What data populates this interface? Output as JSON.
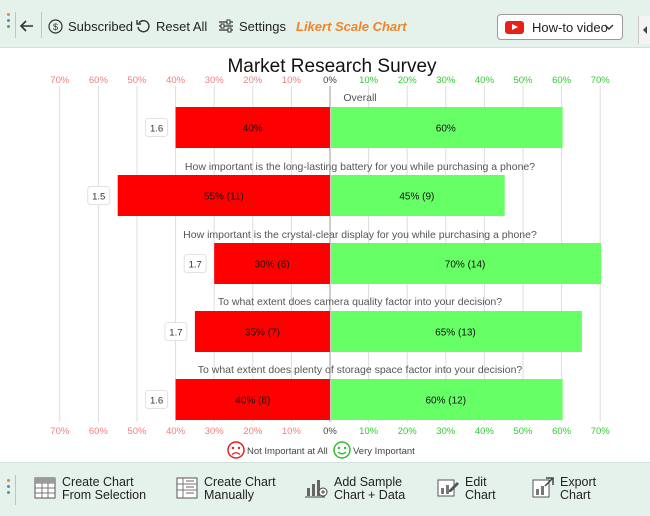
{
  "toolbar": {
    "subscribed_label": "Subscribed",
    "reset_label": "Reset All",
    "settings_label": "Settings",
    "chart_name": "Likert Scale Chart",
    "howto_label": "How-to video"
  },
  "bottom_toolbar": {
    "create_from_selection": [
      "Create Chart",
      "From Selection"
    ],
    "create_manually": [
      "Create Chart",
      "Manually"
    ],
    "add_sample": [
      "Add Sample",
      "Chart + Data"
    ],
    "edit_chart": [
      "Edit",
      "Chart"
    ],
    "export_chart": [
      "Export",
      "Chart"
    ]
  },
  "colors": {
    "negative": "#ff0000",
    "positive": "#66ff66",
    "neg_tick": "#f08080",
    "pos_tick": "#33cc33",
    "accent": "#f0842c"
  },
  "chart_data": {
    "type": "bar",
    "title": "Market Research Survey",
    "x_ticks_negative": [
      "70%",
      "60%",
      "50%",
      "40%",
      "30%",
      "20%",
      "10%"
    ],
    "x_tick_zero": "0%",
    "x_ticks_positive": [
      "10%",
      "20%",
      "30%",
      "40%",
      "50%",
      "60%",
      "70%"
    ],
    "xlim": [
      -70,
      70
    ],
    "legend": {
      "negative": "Not Important at All",
      "positive": "Very Important"
    },
    "rows": [
      {
        "question": "Overall",
        "score": "1.6",
        "negative": 40,
        "positive": 60,
        "neg_label": "40%",
        "pos_label": "60%"
      },
      {
        "question": "How important is the long-lasting battery for you while purchasing a phone?",
        "score": "1.5",
        "negative": 55,
        "positive": 45,
        "neg_label": "55% (11)",
        "pos_label": "45% (9)"
      },
      {
        "question": "How important is the crystal-clear display for you while purchasing a phone?",
        "score": "1.7",
        "negative": 30,
        "positive": 70,
        "neg_label": "30% (6)",
        "pos_label": "70% (14)"
      },
      {
        "question": "To what extent does camera quality factor into your decision?",
        "score": "1.7",
        "negative": 35,
        "positive": 65,
        "neg_label": "35% (7)",
        "pos_label": "65% (13)"
      },
      {
        "question": "To what extent does plenty of storage space factor into your decision?",
        "score": "1.6",
        "negative": 40,
        "positive": 60,
        "neg_label": "40% (8)",
        "pos_label": "60% (12)"
      }
    ]
  }
}
